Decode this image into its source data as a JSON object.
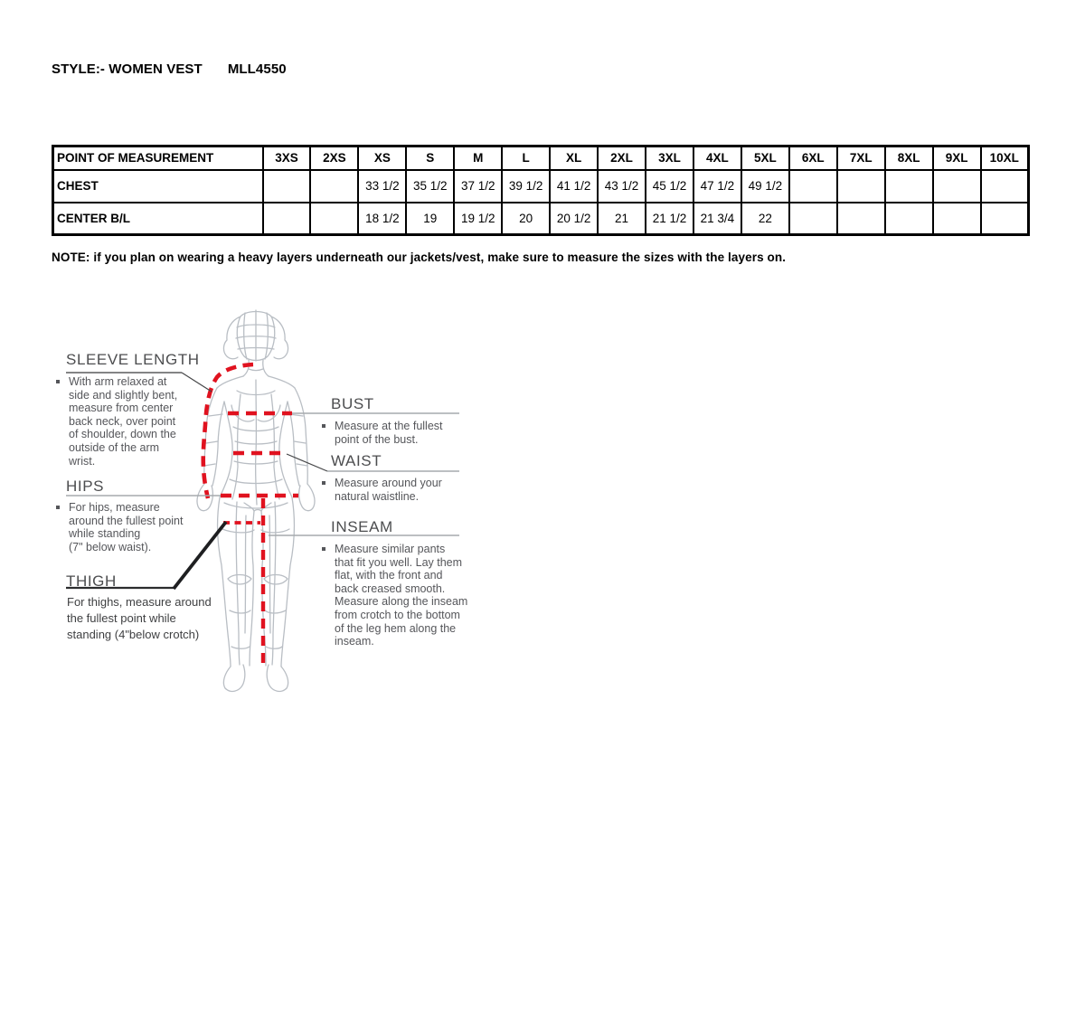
{
  "doc": {
    "title_style": "STYLE:- WOMEN VEST",
    "title_code": "MLL4550",
    "note": "NOTE: if you plan on wearing a heavy layers underneath our jackets/vest, make sure to measure the sizes with the layers on."
  },
  "size_table": {
    "header": [
      "POINT OF MEASUREMENT",
      "3XS",
      "2XS",
      "XS",
      "S",
      "M",
      "L",
      "XL",
      "2XL",
      "3XL",
      "4XL",
      "5XL",
      "6XL",
      "7XL",
      "8XL",
      "9XL",
      "10XL"
    ],
    "rows": [
      {
        "label": "CHEST",
        "values": [
          "",
          "",
          "33 1/2",
          "35 1/2",
          "37 1/2",
          "39 1/2",
          "41 1/2",
          "43 1/2",
          "45 1/2",
          "47 1/2",
          "49 1/2",
          "",
          "",
          "",
          "",
          ""
        ]
      },
      {
        "label": "CENTER B/L",
        "values": [
          "",
          "",
          "18 1/2",
          "19",
          "19 1/2",
          "20",
          "20 1/2",
          "21",
          "21 1/2",
          "21 3/4",
          "22",
          "",
          "",
          "",
          "",
          ""
        ]
      }
    ]
  },
  "guide": {
    "sleeve_length": {
      "heading": "SLEEVE LENGTH",
      "text": "With arm relaxed at\nside and slightly bent,\nmeasure from center\nback neck, over point\nof shoulder, down the\noutside of the arm\nwrist."
    },
    "hips": {
      "heading": "HIPS",
      "text": "For hips, measure\naround the fullest point\nwhile standing\n(7\" below waist)."
    },
    "thigh": {
      "heading": "THIGH",
      "text": "For thighs, measure around\nthe fullest point while\nstanding (4\"below crotch)"
    },
    "bust": {
      "heading": "BUST",
      "text": "Measure at the fullest\npoint of the bust."
    },
    "waist": {
      "heading": "WAIST",
      "text": "Measure around your\nnatural waistline."
    },
    "inseam": {
      "heading": "INSEAM",
      "text": "Measure similar pants\nthat fit you well. Lay them\nflat, with the front and\nback creased smooth.\nMeasure along the inseam\nfrom crotch to the bottom\nof the leg hem along the\ninseam."
    }
  },
  "colors": {
    "dash_red": "#e0121f",
    "mesh": "#b9bec4",
    "guide_heading": "#4c4d4f",
    "guide_text": "#55565a",
    "connector": "#a6aaad",
    "table_border": "#000000"
  }
}
